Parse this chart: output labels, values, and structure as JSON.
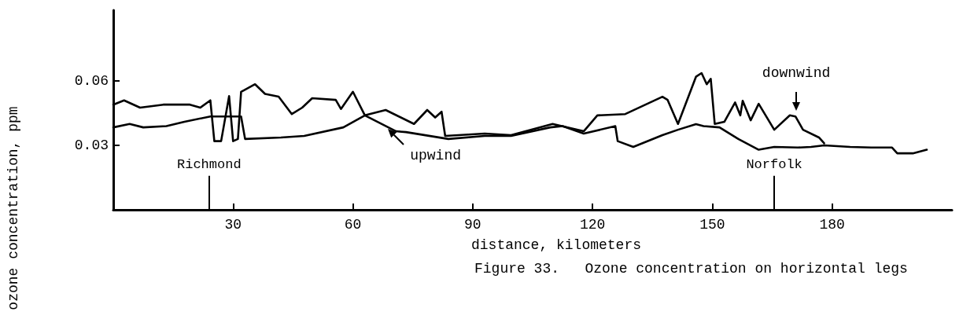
{
  "chart_data": {
    "type": "line",
    "title": "Figure 33.   Ozone concentration on horizontal legs",
    "xlabel": "distance, kilometers",
    "ylabel": "ozone concentration, ppm",
    "xlim": [
      0,
      210
    ],
    "xticks": [
      30,
      60,
      90,
      120,
      150,
      180
    ],
    "ylim": [
      0,
      0.093
    ],
    "yticks": [
      0.03,
      0.06
    ],
    "grid": false,
    "marker": "none",
    "line_style": "solid",
    "series": [
      {
        "color": "#000000",
        "x": [
          0,
          2.7,
          6.7,
          12.5,
          19.2,
          21.8,
          24.3,
          25.3,
          27,
          29,
          30,
          31.2,
          32,
          33,
          35.5,
          38,
          41.4,
          44.7,
          47.3,
          49.8,
          55.7,
          57,
          60,
          63,
          70.8,
          73.3,
          83.9,
          93,
          99.6,
          109.4,
          112.5,
          117.8,
          125.7,
          126.3,
          130.2,
          137.5,
          141.4,
          145.9,
          147.8,
          151.8,
          156.5,
          161.6,
          165.5,
          171.4,
          174.7,
          178,
          184.5,
          189.8,
          195,
          196.3,
          200.2,
          203.7
        ],
        "values": [
          0.049,
          0.051,
          0.0476,
          0.049,
          0.049,
          0.0476,
          0.051,
          0.032,
          0.032,
          0.053,
          0.032,
          0.033,
          0.055,
          0.056,
          0.0585,
          0.054,
          0.0527,
          0.0446,
          0.0476,
          0.052,
          0.0512,
          0.047,
          0.055,
          0.044,
          0.0366,
          0.0362,
          0.033,
          0.0344,
          0.0344,
          0.0384,
          0.039,
          0.0355,
          0.039,
          0.032,
          0.0293,
          0.0348,
          0.0373,
          0.0399,
          0.039,
          0.0384,
          0.033,
          0.028,
          0.0293,
          0.029,
          0.0293,
          0.03,
          0.0293,
          0.029,
          0.029,
          0.0263,
          0.0263,
          0.028
        ]
      },
      {
        "color": "#000000",
        "x": [
          0,
          4.1,
          7.5,
          13.3,
          17.8,
          24.3,
          32,
          33,
          42,
          47.8,
          57.6,
          63,
          68.2,
          75.3,
          78.6,
          80.6,
          82.2,
          83.1,
          93,
          99.6,
          110,
          117.8,
          121.2,
          128.2,
          137.5,
          138.8,
          141.4,
          145.9,
          147.3,
          148.6,
          149.6,
          150.6,
          153,
          155.7,
          157,
          157.6,
          159.6,
          161.6,
          165.5,
          169.4,
          170.8,
          172.7,
          176.7,
          178
        ],
        "values": [
          0.0384,
          0.04,
          0.0384,
          0.039,
          0.041,
          0.0435,
          0.0435,
          0.033,
          0.0337,
          0.0344,
          0.0384,
          0.044,
          0.0465,
          0.04,
          0.0465,
          0.043,
          0.0457,
          0.0344,
          0.0355,
          0.0348,
          0.04,
          0.0366,
          0.044,
          0.0446,
          0.0527,
          0.0512,
          0.04,
          0.062,
          0.0637,
          0.0585,
          0.061,
          0.04,
          0.041,
          0.05,
          0.044,
          0.0508,
          0.0417,
          0.0494,
          0.0373,
          0.044,
          0.0435,
          0.0373,
          0.0337,
          0.031
        ]
      }
    ],
    "ref_lines": [
      {
        "axis": "x",
        "value": 24,
        "label": "Richmond"
      },
      {
        "axis": "x",
        "value": 165.5,
        "label": "Norfolk"
      }
    ],
    "annotations": [
      {
        "text": "upwind",
        "x": 68,
        "y": 0.039
      },
      {
        "text": "downwind",
        "x": 171,
        "y": 0.044
      }
    ]
  }
}
